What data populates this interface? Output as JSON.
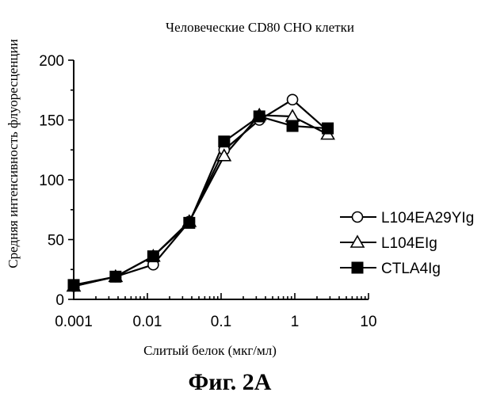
{
  "figure_label": "Фиг. 2A",
  "chart_data": {
    "type": "line",
    "title": "Человеческие CD80 CHO клетки",
    "xlabel": "Слитый белок (мкг/мл)",
    "ylabel": "Средняя интенсивность флуоресценции",
    "x_scale": "log",
    "xlim": [
      0.001,
      10
    ],
    "ylim": [
      0,
      200
    ],
    "x_ticks": [
      0.001,
      0.01,
      0.1,
      1,
      10
    ],
    "x_tick_labels": [
      "0.001",
      "0.01",
      "0.1",
      "1",
      "10"
    ],
    "y_ticks": [
      0,
      50,
      100,
      150,
      200
    ],
    "y_tick_labels": [
      "0",
      "50",
      "100",
      "150",
      "200"
    ],
    "grid": false,
    "legend_position": "right",
    "series": [
      {
        "name": "L104EA29YIg",
        "marker": "circle-open",
        "x": [
          0.001,
          0.0037,
          0.012,
          0.037,
          0.11,
          0.33,
          0.93,
          2.8
        ],
        "y": [
          11,
          19,
          29,
          65,
          125,
          150,
          167,
          141
        ]
      },
      {
        "name": "L104EIg",
        "marker": "triangle-open",
        "x": [
          0.001,
          0.0037,
          0.012,
          0.037,
          0.11,
          0.33,
          0.93,
          2.8
        ],
        "y": [
          11,
          19,
          36,
          65,
          120,
          154,
          153,
          138
        ]
      },
      {
        "name": "CTLA4Ig",
        "marker": "square-filled",
        "x": [
          0.001,
          0.0037,
          0.012,
          0.037,
          0.11,
          0.33,
          0.93,
          2.8
        ],
        "y": [
          12,
          19,
          36,
          64,
          132,
          153,
          145,
          143
        ]
      }
    ]
  }
}
